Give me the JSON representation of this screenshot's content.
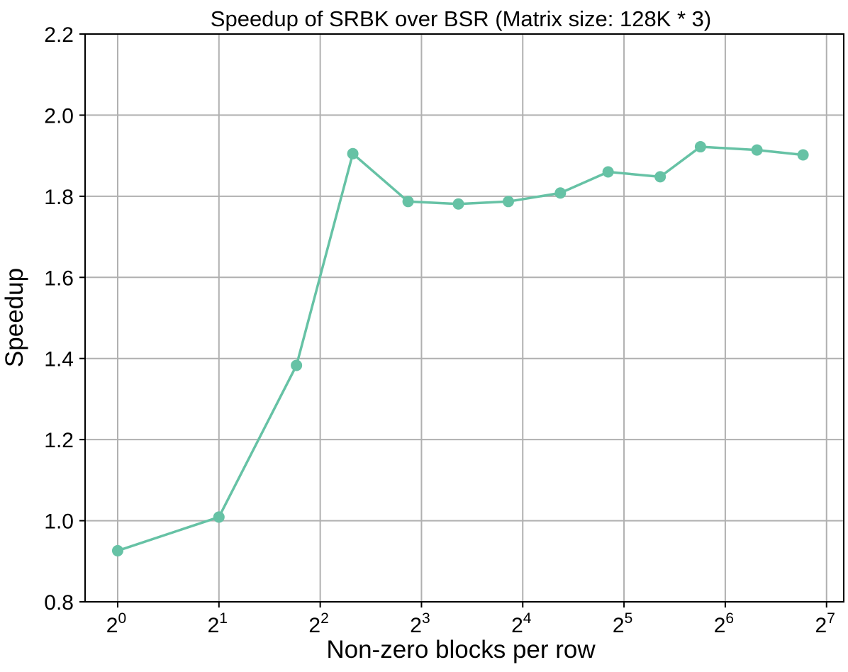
{
  "chart_data": {
    "type": "line",
    "title": "Speedup of SRBK over BSR (Matrix size: 128K * 3)",
    "xlabel": "Non-zero blocks per row",
    "ylabel": "Speedup",
    "x_scale": "log2",
    "xlim": [
      0.8,
      144
    ],
    "ylim": [
      0.8,
      2.2
    ],
    "grid": true,
    "x_ticks": [
      {
        "base": "2",
        "exp": "0",
        "value": 1
      },
      {
        "base": "2",
        "exp": "1",
        "value": 2
      },
      {
        "base": "2",
        "exp": "2",
        "value": 4
      },
      {
        "base": "2",
        "exp": "3",
        "value": 8
      },
      {
        "base": "2",
        "exp": "4",
        "value": 16
      },
      {
        "base": "2",
        "exp": "5",
        "value": 32
      },
      {
        "base": "2",
        "exp": "6",
        "value": 64
      },
      {
        "base": "2",
        "exp": "7",
        "value": 128
      }
    ],
    "y_ticks": [
      "0.8",
      "1.0",
      "1.2",
      "1.4",
      "1.6",
      "1.8",
      "2.0",
      "2.2"
    ],
    "series": [
      {
        "color": "#66c2a5",
        "x": [
          1,
          2,
          3.4,
          5,
          7.3,
          10.3,
          14.5,
          20.7,
          28.7,
          41,
          54,
          79.5,
          109
        ],
        "y": [
          0.926,
          1.009,
          1.383,
          1.905,
          1.787,
          1.781,
          1.787,
          1.808,
          1.86,
          1.848,
          1.922,
          1.914,
          1.902
        ]
      }
    ]
  }
}
